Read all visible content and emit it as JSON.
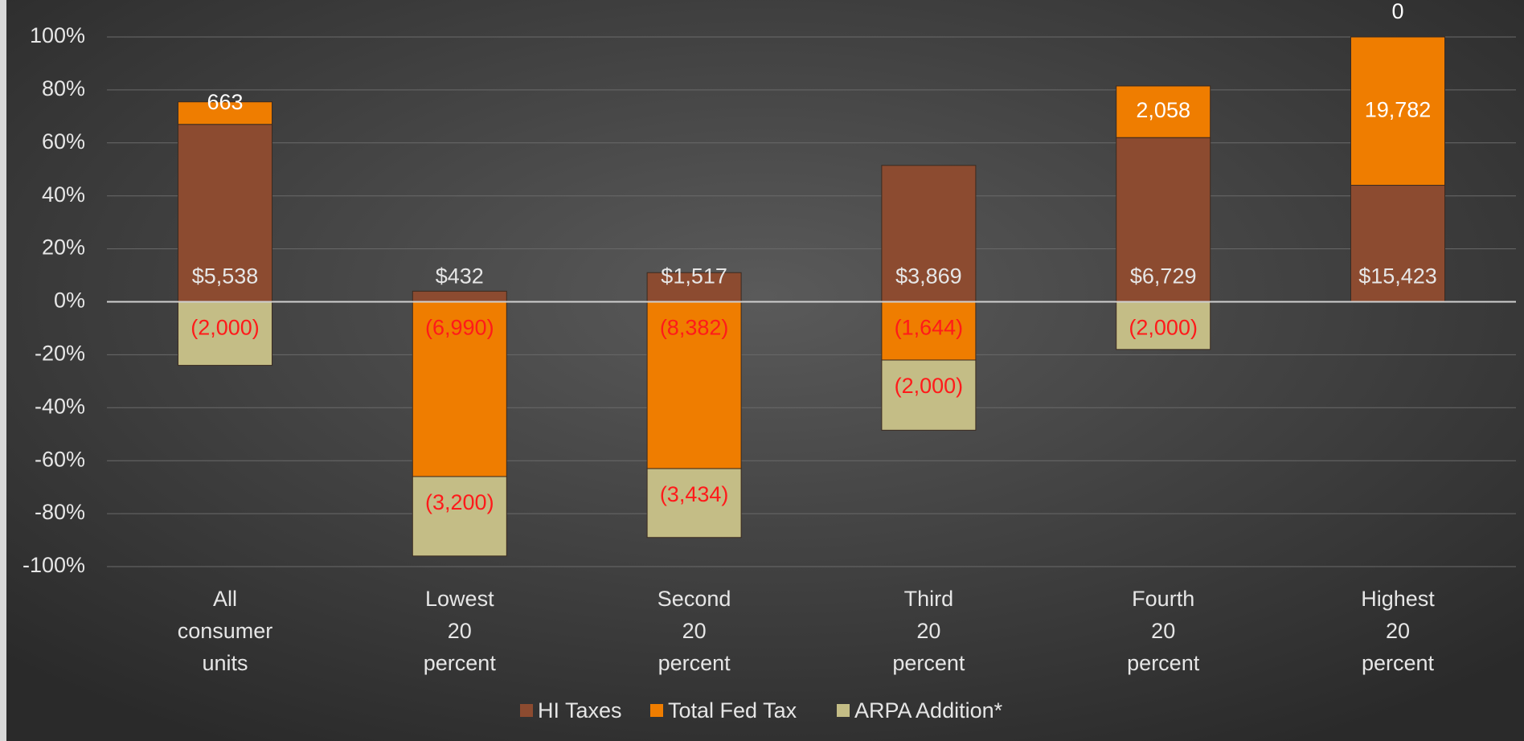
{
  "chart_data": {
    "type": "stacked_bar",
    "categories": [
      "All consumer units",
      "Lowest 20 percent",
      "Second 20 percent",
      "Third 20 percent",
      "Fourth 20 percent",
      "Highest 20 percent"
    ],
    "series": [
      {
        "name": "HI Taxes",
        "color": "#8c4b30",
        "values": [
          67,
          4,
          11,
          51.5,
          62,
          44
        ],
        "value_labels": [
          "$5,538",
          "$432",
          "$1,517",
          "$3,869",
          "$6,729",
          "$15,423"
        ]
      },
      {
        "name": "Total Fed Tax",
        "color": "#ef7d00",
        "values": [
          8.5,
          -66,
          -63,
          -22,
          19.5,
          56
        ],
        "value_labels": [
          "663",
          "(6,990)",
          "(8,382)",
          "(1,644)",
          "2,058",
          "19,782"
        ]
      },
      {
        "name": "ARPA Addition*",
        "color": "#c4bd86",
        "values": [
          -24,
          -30,
          -26,
          -26.5,
          -18,
          0
        ],
        "value_labels": [
          "(2,000)",
          "(3,200)",
          "(3,434)",
          "(2,000)",
          "(2,000)",
          "0"
        ]
      }
    ],
    "ylim": [
      -100,
      100
    ],
    "yticks": [
      {
        "value": -100,
        "label": "-100%"
      },
      {
        "value": -80,
        "label": "-80%"
      },
      {
        "value": -60,
        "label": "-60%"
      },
      {
        "value": -40,
        "label": "-40%"
      },
      {
        "value": -20,
        "label": "-20%"
      },
      {
        "value": 0,
        "label": "0%"
      },
      {
        "value": 20,
        "label": "20%"
      },
      {
        "value": 40,
        "label": "40%"
      },
      {
        "value": 60,
        "label": "60%"
      },
      {
        "value": 80,
        "label": "80%"
      },
      {
        "value": 100,
        "label": "100%"
      }
    ],
    "grid": true,
    "legend": "bottom"
  }
}
